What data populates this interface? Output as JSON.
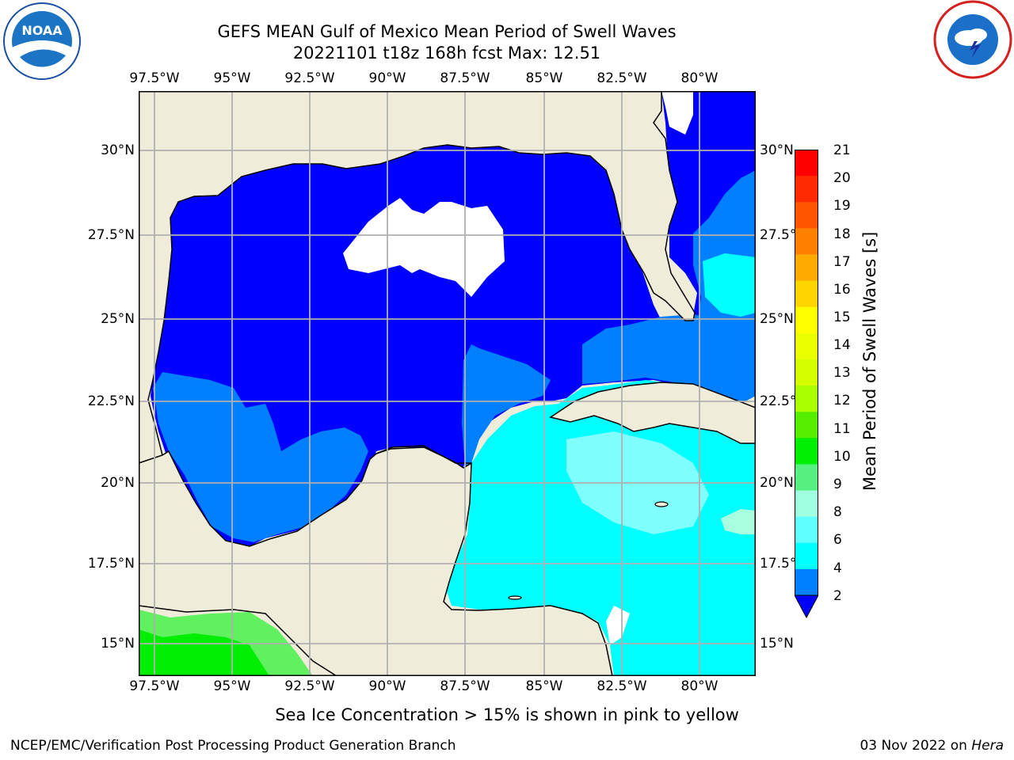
{
  "header": {
    "title_line1": "GEFS MEAN Gulf of Mexico Mean Period of Swell Waves",
    "title_line2": "20221101 t18z 168h fcst   Max: 12.51"
  },
  "logos": {
    "left": "NOAA",
    "left_ring": "NATIONAL OCEANIC AND ATMOSPHERIC ADMINISTRATION · U.S. DEPARTMENT OF COMMERCE",
    "right_ring": "NATIONAL WEATHER SERVICE"
  },
  "map": {
    "lon_labels": [
      "97.5°W",
      "95°W",
      "92.5°W",
      "90°W",
      "87.5°W",
      "85°W",
      "82.5°W",
      "80°W"
    ],
    "lat_labels": [
      "30°N",
      "27.5°N",
      "25°N",
      "22.5°N",
      "20°N",
      "17.5°N",
      "15°N"
    ],
    "colors": {
      "land": "#efedda",
      "level_2_4": "#0000ff",
      "level_4_6": "#0080ff",
      "level_6_8": "#00ffff",
      "level_8_9": "#60ffff",
      "level_9_10": "#a0ffe0",
      "level_11_12": "#00ee00",
      "level_10_11": "#60f060",
      "grid": "#b0b0b0"
    }
  },
  "colorbar": {
    "label": "Mean Period of Swell Waves [s]",
    "ticks": [
      "21",
      "20",
      "19",
      "18",
      "17",
      "16",
      "15",
      "14",
      "13",
      "12",
      "11",
      "10",
      "9",
      "8",
      "6",
      "4",
      "2"
    ],
    "colors": [
      "#ff0000",
      "#ff2a00",
      "#ff5500",
      "#ff8000",
      "#ffaa00",
      "#ffd500",
      "#ffff00",
      "#eaff00",
      "#d5ff00",
      "#aaff00",
      "#55ee00",
      "#00ee00",
      "#55f080",
      "#a0ffe0",
      "#60ffff",
      "#00ffff",
      "#0080ff",
      "#0000ff"
    ]
  },
  "note": "Sea Ice Concentration > 15% is shown in pink to yellow",
  "footer": {
    "left": "NCEP/EMC/Verification Post Processing Product Generation Branch",
    "right_date": "03 Nov 2022 on ",
    "right_machine": "Hera"
  }
}
